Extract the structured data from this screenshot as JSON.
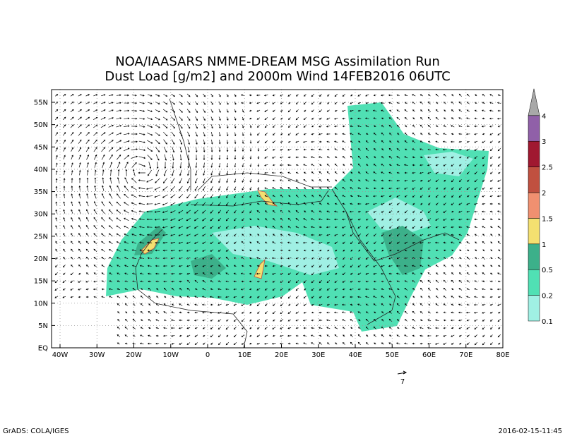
{
  "title_lines": [
    "NOA/IAASARS NMME-DREAM MSG Assimilation Run",
    "Dust Load [g/m2] and 2000m Wind 14FEB2016 06UTC"
  ],
  "lat_labels": [
    "55N",
    "50N",
    "45N",
    "40N",
    "35N",
    "30N",
    "25N",
    "20N",
    "15N",
    "10N",
    "5N",
    "EQ"
  ],
  "lon_labels": [
    "40W",
    "30W",
    "20W",
    "10W",
    "0",
    "10E",
    "20E",
    "30E",
    "40E",
    "50E",
    "60E",
    "70E",
    "80E"
  ],
  "colorbar": {
    "levels": [
      0.1,
      0.2,
      0.5,
      1,
      1.5,
      2,
      2.5,
      3,
      4
    ],
    "colors": [
      "#a0f0e4",
      "#50e0b4",
      "#3cb08a",
      "#f4e070",
      "#f09070",
      "#c05040",
      "#a01830",
      "#9060a8",
      "#a8a8a8"
    ]
  },
  "wind_reference": "7",
  "footer_left": "GrADS: COLA/IGES",
  "footer_right": "2016-02-15-11:45"
}
